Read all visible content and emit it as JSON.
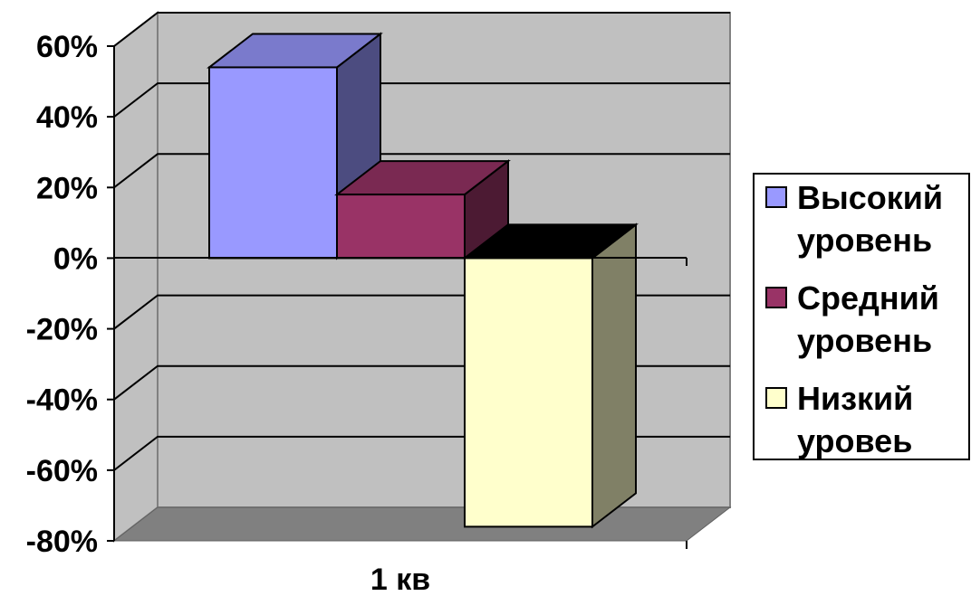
{
  "chart_data": {
    "type": "bar",
    "categories": [
      "1 кв"
    ],
    "series": [
      {
        "name": "Высокий уровень",
        "values": [
          54
        ],
        "color": "#9999ff"
      },
      {
        "name": "Средний уровень",
        "values": [
          18
        ],
        "color": "#993366"
      },
      {
        "name": "Низкий уровеь",
        "values": [
          -76
        ],
        "color": "#ffffcc"
      }
    ],
    "y_ticks": [
      "60%",
      "40%",
      "20%",
      "0%",
      "-20%",
      "-40%",
      "-60%",
      "-80%"
    ],
    "ylim": [
      -80,
      60
    ],
    "y_unit": "%",
    "three_d": true,
    "grid": true,
    "legend": "right",
    "legend_lines": [
      [
        "Высокий",
        "уровень"
      ],
      [
        "Средний",
        "уровень"
      ],
      [
        "Низкий",
        "уровеь"
      ]
    ],
    "colors": {
      "wall": "#c0c0c0",
      "floor": "#808080",
      "high_side": "#4c4c80",
      "high_top": "#7a7acc",
      "mid_side": "#4c1a33",
      "mid_top": "#7a2952",
      "low_side": "#808066",
      "low_top": "#000000"
    }
  }
}
